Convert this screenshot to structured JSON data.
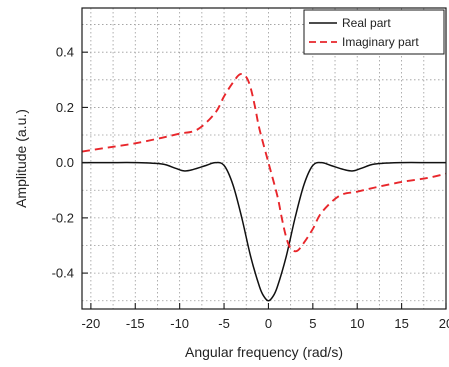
{
  "chart_data": {
    "type": "line",
    "xlabel": "Angular frequency (rad/s)",
    "ylabel": "Amplitude (a.u.)",
    "xlim": [
      -21,
      20
    ],
    "ylim": [
      -0.53,
      0.56
    ],
    "x_ticks": [
      -20,
      -15,
      -10,
      -5,
      0,
      5,
      10,
      15,
      20
    ],
    "x_tick_labels": [
      "-20",
      "-15",
      "-10",
      "-5",
      "0",
      "5",
      "10",
      "15",
      "20"
    ],
    "y_ticks": [
      -0.4,
      -0.2,
      0.0,
      0.2,
      0.4
    ],
    "y_tick_labels": [
      "-0.4",
      "-0.2",
      "0.0",
      "0.2",
      "0.4"
    ],
    "grid": true,
    "legend_position": "top-right",
    "series": [
      {
        "name": "Real part",
        "color": "#111111",
        "line_style": "solid",
        "x": [
          -21,
          -18,
          -15,
          -12,
          -10.5,
          -9.5,
          -8.5,
          -7,
          -6,
          -5,
          -4,
          -3,
          -2,
          -1,
          -0.5,
          0,
          0.5,
          1,
          2,
          3,
          4,
          5,
          6,
          7,
          8.5,
          9.5,
          10.5,
          12,
          15,
          18,
          20
        ],
        "y": [
          0.0,
          0.0,
          0.0,
          -0.005,
          -0.02,
          -0.03,
          -0.025,
          -0.01,
          0.0,
          -0.01,
          -0.08,
          -0.2,
          -0.34,
          -0.45,
          -0.485,
          -0.5,
          -0.485,
          -0.45,
          -0.34,
          -0.2,
          -0.08,
          -0.01,
          0.0,
          -0.01,
          -0.025,
          -0.03,
          -0.02,
          -0.005,
          0.0,
          0.0,
          0.0
        ]
      },
      {
        "name": "Imaginary part",
        "color": "#e8262b",
        "line_style": "dashed",
        "x": [
          -21,
          -18,
          -15,
          -12,
          -10,
          -8,
          -6,
          -5,
          -4,
          -3.2,
          -2.5,
          -2,
          -1.5,
          -1,
          0,
          1,
          1.5,
          2,
          2.5,
          3.2,
          4,
          5,
          6,
          8,
          10,
          12,
          15,
          18,
          20
        ],
        "y": [
          0.04,
          0.055,
          0.07,
          0.09,
          0.105,
          0.12,
          0.18,
          0.24,
          0.29,
          0.32,
          0.31,
          0.27,
          0.2,
          0.12,
          0.0,
          -0.12,
          -0.2,
          -0.27,
          -0.31,
          -0.32,
          -0.29,
          -0.24,
          -0.18,
          -0.12,
          -0.105,
          -0.09,
          -0.07,
          -0.055,
          -0.04
        ]
      }
    ]
  }
}
